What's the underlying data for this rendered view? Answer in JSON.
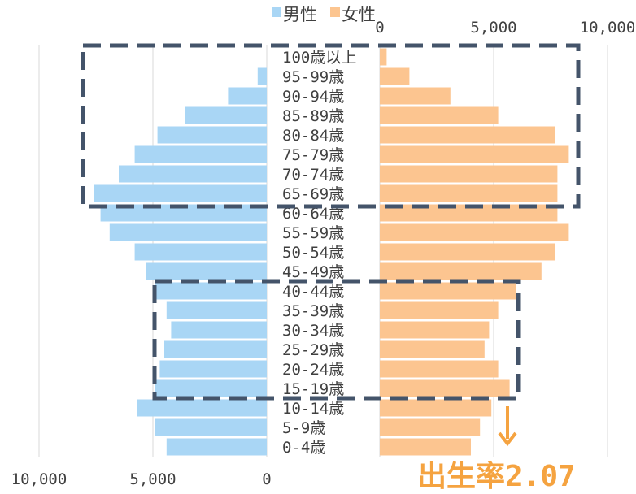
{
  "chart_data": {
    "type": "bar",
    "orientation": "horizontal",
    "layout": "population-pyramid",
    "categories": [
      "0-4歳",
      "5-9歳",
      "10-14歳",
      "15-19歳",
      "20-24歳",
      "25-29歳",
      "30-34歳",
      "35-39歳",
      "40-44歳",
      "45-49歳",
      "50-54歳",
      "55-59歳",
      "60-64歳",
      "65-69歳",
      "70-74歳",
      "75-79歳",
      "80-84歳",
      "85-89歳",
      "90-94歳",
      "95-99歳",
      "100歳以上"
    ],
    "series": [
      {
        "name": "男性",
        "color": "#a9d6f5",
        "side": "left",
        "values": [
          4400,
          4900,
          5700,
          4900,
          4700,
          4500,
          4200,
          4400,
          4900,
          5300,
          5800,
          6900,
          7300,
          7600,
          6500,
          5800,
          4800,
          3600,
          1700,
          400,
          0
        ]
      },
      {
        "name": "女性",
        "color": "#fcc590",
        "side": "right",
        "values": [
          4000,
          4400,
          4900,
          5700,
          5200,
          4600,
          4800,
          5200,
          6000,
          7100,
          7700,
          8300,
          7800,
          7800,
          7800,
          8300,
          7700,
          5200,
          3100,
          1300,
          300
        ]
      }
    ],
    "left_axis": {
      "ticks": [
        "10,000",
        "5,000",
        "0"
      ],
      "range": [
        0,
        10000
      ]
    },
    "right_axis": {
      "ticks": [
        "0",
        "5,000",
        "10,000"
      ],
      "range": [
        0,
        10000
      ]
    },
    "legend": "top-center",
    "grid": true
  },
  "annotation": {
    "label": "出生率2.07",
    "color": "#f5a340"
  }
}
